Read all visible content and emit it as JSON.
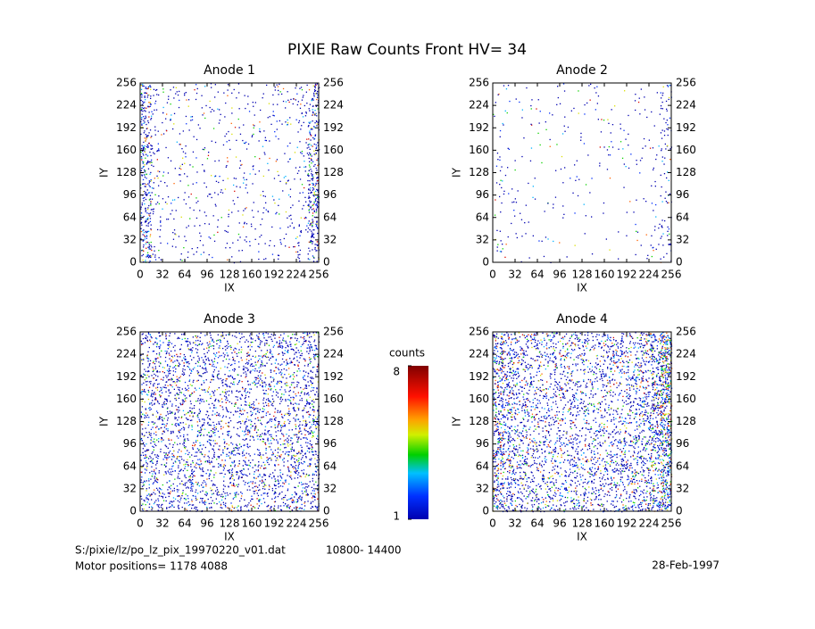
{
  "title": "PIXIE Raw Counts Front HV= 34",
  "chart_data": [
    {
      "type": "heatmap",
      "title": "Anode 1",
      "xlabel": "IX",
      "ylabel": "IY",
      "xlim": [
        0,
        256
      ],
      "ylim": [
        0,
        256
      ],
      "xticks": [
        0,
        32,
        64,
        96,
        128,
        160,
        192,
        224,
        256
      ],
      "yticks": [
        0,
        32,
        64,
        96,
        128,
        160,
        192,
        224,
        256
      ],
      "column_density": [
        320,
        70,
        45,
        45,
        40,
        40,
        40,
        40,
        40,
        40,
        40,
        40,
        45,
        50,
        80,
        320
      ]
    },
    {
      "type": "heatmap",
      "title": "Anode 2",
      "xlabel": "IX",
      "ylabel": "IY",
      "xlim": [
        0,
        256
      ],
      "ylim": [
        0,
        256
      ],
      "xticks": [
        0,
        32,
        64,
        96,
        128,
        160,
        192,
        224,
        256
      ],
      "yticks": [
        0,
        32,
        64,
        96,
        128,
        160,
        192,
        224,
        256
      ],
      "column_density": [
        40,
        22,
        18,
        16,
        16,
        16,
        16,
        16,
        16,
        16,
        16,
        16,
        18,
        20,
        30,
        90
      ]
    },
    {
      "type": "heatmap",
      "title": "Anode 3",
      "xlabel": "IX",
      "ylabel": "IY",
      "xlim": [
        0,
        256
      ],
      "ylim": [
        0,
        256
      ],
      "xticks": [
        0,
        32,
        64,
        96,
        128,
        160,
        192,
        224,
        256
      ],
      "yticks": [
        0,
        32,
        64,
        96,
        128,
        160,
        192,
        224,
        256
      ],
      "column_density": [
        230,
        220,
        210,
        210,
        200,
        200,
        200,
        190,
        190,
        200,
        200,
        210,
        210,
        220,
        230,
        250
      ]
    },
    {
      "type": "heatmap",
      "title": "Anode 4",
      "xlabel": "IX",
      "ylabel": "IY",
      "xlim": [
        0,
        256
      ],
      "ylim": [
        0,
        256
      ],
      "xticks": [
        0,
        32,
        64,
        96,
        128,
        160,
        192,
        224,
        256
      ],
      "yticks": [
        0,
        32,
        64,
        96,
        128,
        160,
        192,
        224,
        256
      ],
      "column_density": [
        420,
        300,
        240,
        220,
        210,
        200,
        200,
        200,
        200,
        200,
        210,
        220,
        240,
        280,
        380,
        600
      ]
    }
  ],
  "colorbar": {
    "label": "counts",
    "lim": [
      1,
      8
    ],
    "ticks": [
      8,
      1
    ]
  },
  "footer": {
    "file": "S:/pixie/lz/po_lz_pix_19970220_v01.dat",
    "range": "10800- 14400",
    "motor": "Motor positions= 1178 4088",
    "date": "28-Feb-1997"
  }
}
